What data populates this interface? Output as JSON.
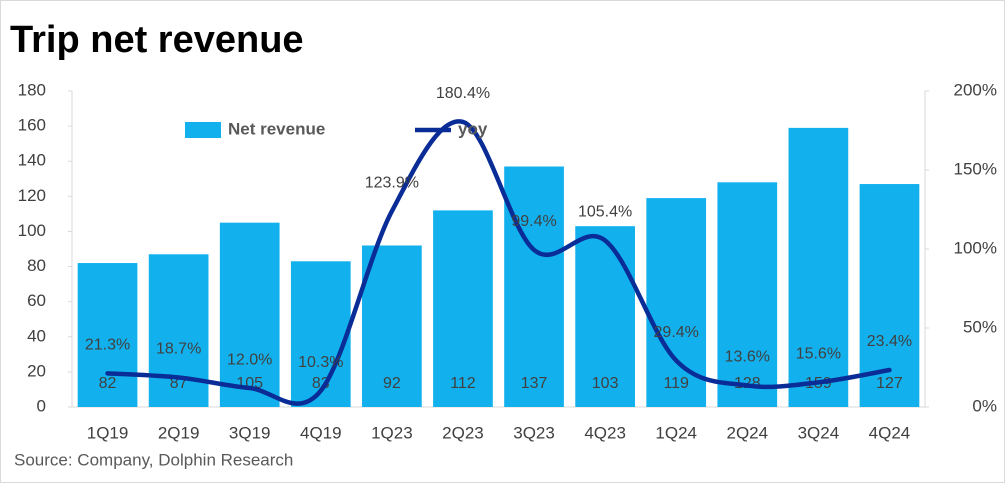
{
  "chart_data": {
    "type": "bar-line",
    "title": "Trip net revenue",
    "source": "Source: Company, Dolphin Research",
    "categories": [
      "1Q19",
      "2Q19",
      "3Q19",
      "4Q19",
      "1Q23",
      "2Q23",
      "3Q23",
      "4Q23",
      "1Q24",
      "2Q24",
      "3Q24",
      "4Q24"
    ],
    "series": [
      {
        "name": "Net revenue",
        "type": "bar",
        "color": "#12b1ee",
        "values": [
          82,
          87,
          105,
          83,
          92,
          112,
          137,
          103,
          119,
          128,
          159,
          127
        ]
      },
      {
        "name": "yoy",
        "type": "line",
        "axis": "y2",
        "color": "#0a2c96",
        "values": [
          21.3,
          18.7,
          12.0,
          10.3,
          123.9,
          180.4,
          99.4,
          105.4,
          29.4,
          13.6,
          15.6,
          23.4
        ],
        "value_labels": [
          "21.3%",
          "18.7%",
          "12.0%",
          "10.3%",
          "123.9%",
          "180.4%",
          "99.4%",
          "105.4%",
          "29.4%",
          "13.6%",
          "15.6%",
          "23.4%"
        ]
      }
    ],
    "ylim": [
      0,
      180
    ],
    "yticks": [
      0,
      20,
      40,
      60,
      80,
      100,
      120,
      140,
      160,
      180
    ],
    "y2lim": [
      0,
      200
    ],
    "y2ticks": [
      {
        "value": 0,
        "label": "0%"
      },
      {
        "value": 50,
        "label": "50%"
      },
      {
        "value": 100,
        "label": "100%"
      },
      {
        "value": 150,
        "label": "150%"
      },
      {
        "value": 200,
        "label": "200%"
      }
    ],
    "legend": "top"
  }
}
